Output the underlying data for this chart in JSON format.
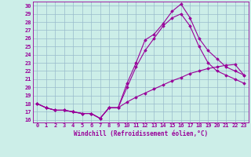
{
  "xlabel": "Windchill (Refroidissement éolien,°C)",
  "bg_color": "#cceee8",
  "line_color": "#990099",
  "grid_color": "#99bbcc",
  "xlim_min": -0.5,
  "xlim_max": 23.5,
  "ylim_min": 15.7,
  "ylim_max": 30.5,
  "yticks": [
    16,
    17,
    18,
    19,
    20,
    21,
    22,
    23,
    24,
    25,
    26,
    27,
    28,
    29,
    30
  ],
  "xticks": [
    0,
    1,
    2,
    3,
    4,
    5,
    6,
    7,
    8,
    9,
    10,
    11,
    12,
    13,
    14,
    15,
    16,
    17,
    18,
    19,
    20,
    21,
    22,
    23
  ],
  "series1_x": [
    0,
    1,
    2,
    3,
    4,
    5,
    6,
    7,
    8,
    9,
    10,
    11,
    12,
    13,
    14,
    15,
    16,
    17,
    18,
    19,
    20,
    21,
    22,
    23
  ],
  "series1_y": [
    18.0,
    17.5,
    17.2,
    17.2,
    17.0,
    16.8,
    16.8,
    16.2,
    17.5,
    17.5,
    20.5,
    23.0,
    25.8,
    26.5,
    27.8,
    29.3,
    30.2,
    28.5,
    26.0,
    24.5,
    23.5,
    22.5,
    22.0,
    21.5
  ],
  "series2_x": [
    0,
    1,
    2,
    3,
    4,
    5,
    6,
    7,
    8,
    9,
    10,
    11,
    12,
    13,
    14,
    15,
    16,
    17,
    18,
    19,
    20,
    21,
    22,
    23
  ],
  "series2_y": [
    18.0,
    17.5,
    17.2,
    17.2,
    17.0,
    16.8,
    16.8,
    16.2,
    17.5,
    17.5,
    20.0,
    22.5,
    24.5,
    26.0,
    27.5,
    28.5,
    29.0,
    27.5,
    25.0,
    23.0,
    22.0,
    21.5,
    21.0,
    20.5
  ],
  "series3_x": [
    0,
    1,
    2,
    3,
    4,
    5,
    6,
    7,
    8,
    9,
    10,
    11,
    12,
    13,
    14,
    15,
    16,
    17,
    18,
    19,
    20,
    21,
    22,
    23
  ],
  "series3_y": [
    18.0,
    17.5,
    17.2,
    17.2,
    17.0,
    16.8,
    16.8,
    16.2,
    17.5,
    17.5,
    18.2,
    18.8,
    19.3,
    19.8,
    20.3,
    20.8,
    21.2,
    21.7,
    22.0,
    22.3,
    22.5,
    22.7,
    22.8,
    21.5
  ]
}
